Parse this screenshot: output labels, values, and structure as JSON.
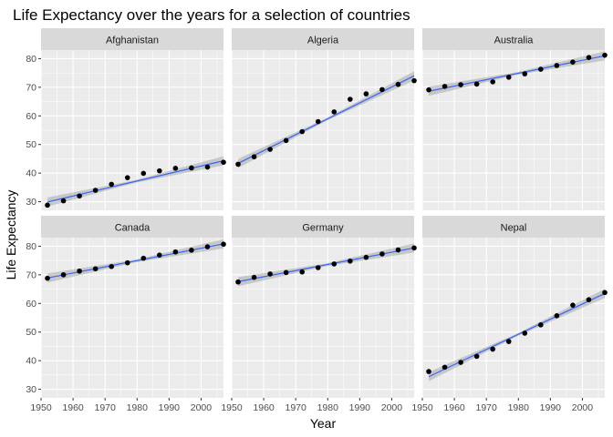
{
  "chart_data": {
    "type": "scatter",
    "title": "Life Expectancy over the years for a selection of countries",
    "xlabel": "Year",
    "ylabel": "Life Expectancy",
    "xlim": [
      1950,
      2007
    ],
    "ylim": [
      27,
      83
    ],
    "x_ticks": [
      1950,
      1960,
      1970,
      1980,
      1990,
      2000
    ],
    "x_tick_labels": [
      "1950",
      "1960",
      "1970",
      "1980",
      "1990",
      "2000"
    ],
    "y_ticks": [
      30,
      40,
      50,
      60,
      70,
      80
    ],
    "y_tick_labels": [
      "30",
      "40",
      "50",
      "60",
      "70",
      "80"
    ],
    "x": [
      1952,
      1957,
      1962,
      1967,
      1972,
      1977,
      1982,
      1987,
      1992,
      1997,
      2002,
      2007
    ],
    "panels": [
      {
        "name": "Afghanistan",
        "values": [
          28.8,
          30.3,
          32.0,
          34.0,
          36.1,
          38.4,
          39.9,
          40.8,
          41.7,
          41.8,
          42.1,
          43.8
        ],
        "fit": [
          29.9,
          44.3
        ]
      },
      {
        "name": "Algeria",
        "values": [
          43.1,
          45.7,
          48.3,
          51.4,
          54.5,
          58.0,
          61.4,
          65.8,
          67.7,
          69.2,
          71.0,
          72.3
        ],
        "fit": [
          43.4,
          74.0
        ]
      },
      {
        "name": "Australia",
        "values": [
          69.1,
          70.3,
          70.9,
          71.1,
          71.9,
          73.5,
          74.7,
          76.3,
          77.6,
          78.8,
          80.4,
          81.2
        ],
        "fit": [
          68.6,
          81.0
        ]
      },
      {
        "name": "Canada",
        "values": [
          68.8,
          70.0,
          71.3,
          72.1,
          72.9,
          74.2,
          75.8,
          76.9,
          78.0,
          78.6,
          79.8,
          80.7
        ],
        "fit": [
          68.9,
          80.8
        ]
      },
      {
        "name": "Germany",
        "values": [
          67.5,
          69.1,
          70.3,
          70.8,
          71.0,
          72.5,
          73.8,
          74.8,
          76.1,
          77.3,
          78.7,
          79.4
        ],
        "fit": [
          67.6,
          79.4
        ]
      },
      {
        "name": "Nepal",
        "values": [
          36.2,
          37.7,
          39.4,
          41.5,
          44.0,
          46.7,
          49.6,
          52.5,
          55.7,
          59.4,
          61.3,
          63.8
        ],
        "fit": [
          34.4,
          63.5
        ]
      }
    ],
    "grid": true,
    "layout": "facet 2 rows x 3 columns",
    "colors": {
      "panel_bg": "#ebebeb",
      "strip_bg": "#d9d9d9",
      "grid": "#ffffff",
      "point": "#000000",
      "fit_line": "#3366ff",
      "ribbon": "#999999",
      "text": "#000000",
      "tick_text": "#4d4d4d",
      "strip_text": "#1a1a1a"
    }
  }
}
